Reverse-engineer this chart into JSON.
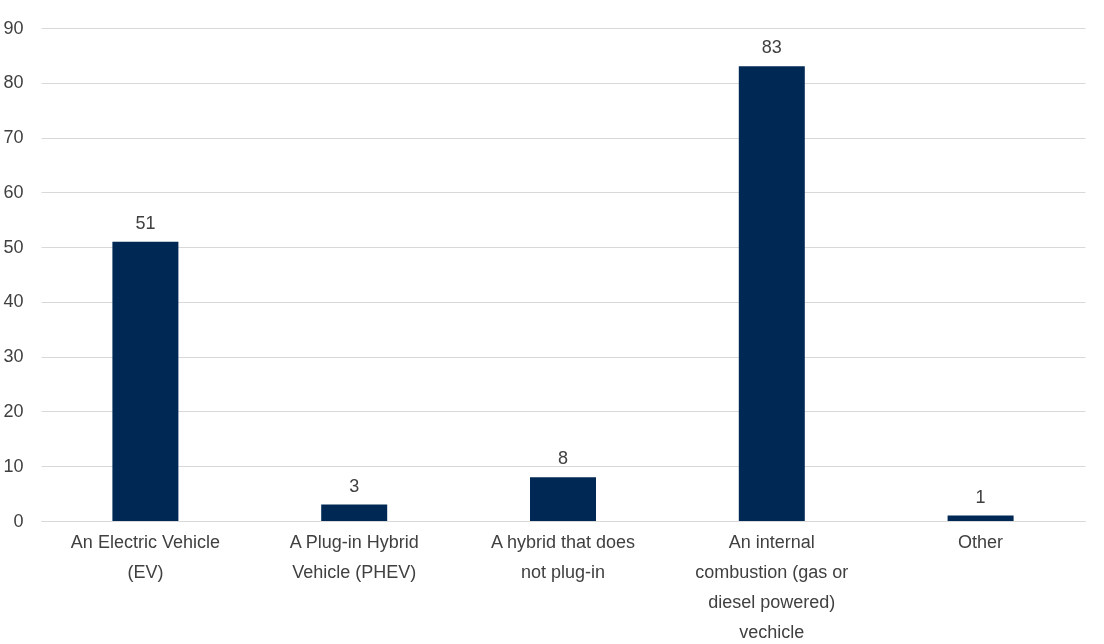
{
  "chart_data": {
    "type": "bar",
    "categories": [
      "An Electric Vehicle (EV)",
      "A Plug-in Hybrid Vehicle (PHEV)",
      "A hybrid that does not plug-in",
      "An internal combustion (gas or diesel powered) vechicle",
      "Other"
    ],
    "values": [
      51,
      3,
      8,
      83,
      1
    ],
    "color": "#002855",
    "ylim": [
      0,
      90
    ],
    "yticks": [
      0,
      10,
      20,
      30,
      40,
      50,
      60,
      70,
      80,
      90
    ],
    "grid": "y",
    "data_labels": true
  }
}
